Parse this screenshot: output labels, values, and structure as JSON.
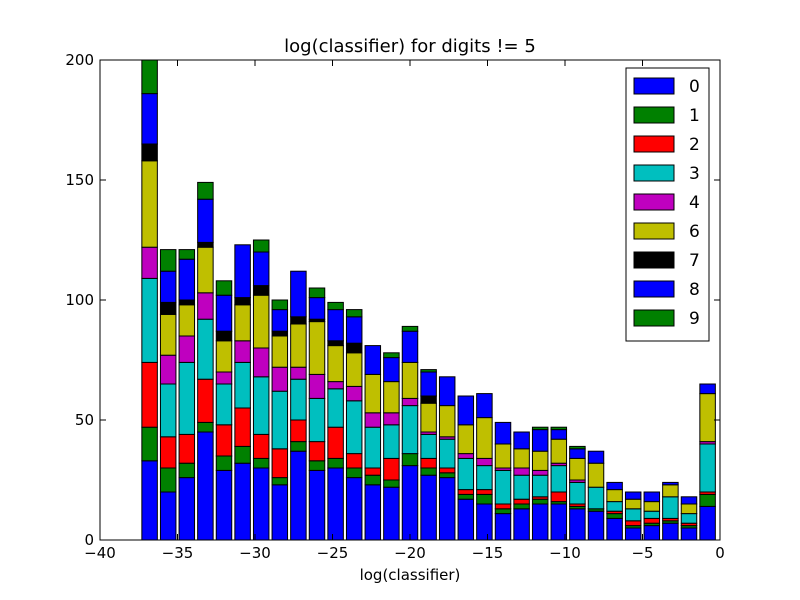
{
  "chart_data": {
    "type": "bar",
    "stacked": true,
    "title": "log(classifier) for digits != 5",
    "xlabel": "log(classifier)",
    "ylabel": "",
    "xlim": [
      -40,
      0
    ],
    "ylim": [
      0,
      200
    ],
    "xticks": [
      -40,
      -35,
      -30,
      -25,
      -20,
      -15,
      -10,
      -5,
      0
    ],
    "xtick_labels": [
      "−40",
      "−35",
      "−30",
      "−25",
      "−20",
      "−15",
      "−10",
      "−5",
      "0"
    ],
    "yticks": [
      0,
      50,
      100,
      150,
      200
    ],
    "ytick_labels": [
      "0",
      "50",
      "100",
      "150",
      "200"
    ],
    "grid": false,
    "legend_position": "top-right",
    "bar_width": 1.0,
    "x": [
      -36.8,
      -35.6,
      -34.4,
      -33.2,
      -32.0,
      -30.8,
      -29.6,
      -28.4,
      -27.2,
      -26.0,
      -24.8,
      -23.6,
      -22.4,
      -21.2,
      -20.0,
      -18.8,
      -17.6,
      -16.4,
      -15.2,
      -14.0,
      -12.8,
      -11.6,
      -10.4,
      -9.2,
      -8.0,
      -6.8,
      -5.6,
      -4.4,
      -3.2,
      -2.0,
      -0.8
    ],
    "series": [
      {
        "name": "0",
        "color": "#0000ff",
        "values": [
          33,
          20,
          26,
          45,
          29,
          32,
          30,
          23,
          37,
          29,
          30,
          26,
          23,
          22,
          31,
          27,
          26,
          17,
          15,
          11,
          13,
          15,
          15,
          13,
          12,
          9,
          5,
          6,
          7,
          5,
          14
        ]
      },
      {
        "name": "1",
        "color": "#008000",
        "values": [
          14,
          10,
          6,
          4,
          6,
          7,
          4,
          3,
          4,
          4,
          4,
          4,
          4,
          3,
          5,
          3,
          2,
          2,
          4,
          2,
          2,
          2,
          1,
          1,
          1,
          2,
          1,
          1,
          1,
          1,
          5
        ]
      },
      {
        "name": "2",
        "color": "#ff0000",
        "values": [
          27,
          13,
          12,
          18,
          13,
          16,
          10,
          12,
          9,
          8,
          13,
          6,
          3,
          9,
          0,
          4,
          2,
          2,
          2,
          2,
          2,
          1,
          4,
          1,
          0,
          1,
          2,
          2,
          1,
          1,
          1
        ]
      },
      {
        "name": "3",
        "color": "#00bfbf",
        "values": [
          35,
          22,
          30,
          25,
          17,
          19,
          24,
          24,
          17,
          18,
          16,
          22,
          17,
          14,
          20,
          10,
          12,
          13,
          10,
          14,
          10,
          9,
          11,
          9,
          9,
          4,
          5,
          3,
          9,
          4,
          20
        ]
      },
      {
        "name": "4",
        "color": "#bf00bf",
        "values": [
          13,
          12,
          11,
          11,
          5,
          9,
          12,
          10,
          5,
          10,
          3,
          6,
          6,
          5,
          3,
          1,
          1,
          2,
          3,
          1,
          3,
          2,
          1,
          1,
          0,
          0,
          0,
          0,
          0,
          0,
          1
        ]
      },
      {
        "name": "6",
        "color": "#bfbf00",
        "values": [
          36,
          17,
          13,
          19,
          13,
          15,
          22,
          13,
          18,
          22,
          15,
          14,
          16,
          13,
          15,
          12,
          13,
          12,
          17,
          10,
          8,
          8,
          10,
          9,
          10,
          5,
          4,
          4,
          5,
          4,
          20
        ]
      },
      {
        "name": "7",
        "color": "#000000",
        "values": [
          7,
          5,
          2,
          2,
          4,
          3,
          4,
          2,
          3,
          1,
          2,
          4,
          0,
          0,
          0,
          3,
          0,
          0,
          0,
          0,
          0,
          0,
          0,
          0,
          0,
          0,
          0,
          0,
          0,
          0,
          0
        ]
      },
      {
        "name": "8",
        "color": "#0000ff",
        "values": [
          21,
          13,
          17,
          18,
          15,
          22,
          14,
          9,
          19,
          9,
          13,
          11,
          12,
          10,
          13,
          10,
          12,
          12,
          10,
          9,
          7,
          9,
          4,
          4,
          5,
          3,
          3,
          4,
          1,
          3,
          4
        ]
      },
      {
        "name": "9",
        "color": "#008000",
        "values": [
          14,
          9,
          4,
          7,
          6,
          0,
          5,
          4,
          0,
          4,
          3,
          3,
          0,
          2,
          2,
          1,
          0,
          0,
          0,
          0,
          0,
          1,
          1,
          1,
          0,
          0,
          0,
          0,
          0,
          0,
          0
        ]
      }
    ]
  }
}
